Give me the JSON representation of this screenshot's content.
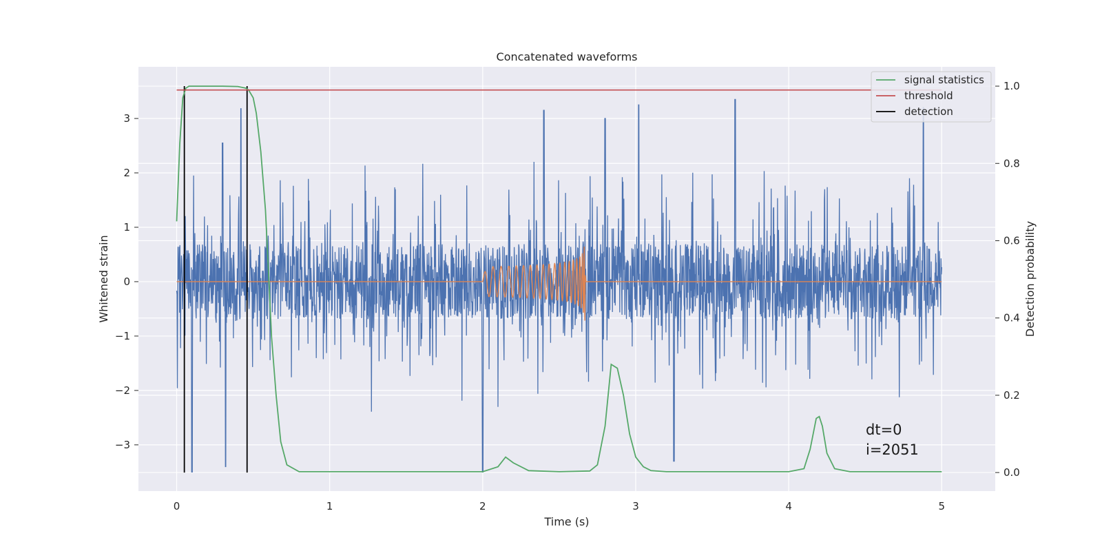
{
  "chart_data": {
    "type": "line",
    "title": "Concatenated waveforms",
    "xlabel": "Time (s)",
    "ylabel": "Whitened strain",
    "ylabel_right": "Detection probability",
    "xlim": [
      -0.25,
      5.35
    ],
    "ylim": [
      -3.85,
      3.95
    ],
    "ylim_right": [
      -0.048,
      1.05
    ],
    "x_ticks": [
      0,
      1,
      2,
      3,
      4,
      5
    ],
    "x_tick_labels": [
      "0",
      "1",
      "2",
      "3",
      "4",
      "5"
    ],
    "y_ticks": [
      -3,
      -2,
      -1,
      0,
      1,
      2,
      3
    ],
    "y_tick_labels": [
      "−3",
      "−2",
      "−1",
      "0",
      "1",
      "2",
      "3"
    ],
    "y2_ticks": [
      0.0,
      0.2,
      0.4,
      0.6,
      0.8,
      1.0
    ],
    "y2_tick_labels": [
      "0.0",
      "0.2",
      "0.4",
      "0.6",
      "0.8",
      "1.0"
    ],
    "grid": true,
    "legend_position": "top-right",
    "colors": {
      "strain": "#4c72b0",
      "injected_signal": "#dd8452",
      "signal_statistics": "#55a868",
      "threshold": "#c44e52",
      "detection": "#000000",
      "plot_background": "#eaeaf2",
      "grid": "#ffffff"
    },
    "strain": {
      "x_range": [
        0,
        5
      ],
      "core_amplitude": 0.6,
      "min": -3.5,
      "max": 3.35,
      "note_peaks": [
        [
          0.3,
          2.55
        ],
        [
          0.42,
          3.18
        ],
        [
          2.4,
          3.15
        ],
        [
          2.8,
          3.0
        ],
        [
          3.02,
          3.25
        ],
        [
          3.65,
          3.35
        ],
        [
          4.88,
          3.2
        ],
        [
          0.1,
          -3.5
        ],
        [
          0.32,
          -3.4
        ],
        [
          2.0,
          -3.5
        ],
        [
          3.25,
          -3.3
        ]
      ]
    },
    "injected_signal": {
      "x_range": [
        2.0,
        2.67
      ],
      "peak_amplitude": 0.72
    },
    "series": [
      {
        "name": "signal statistics",
        "axis": "right",
        "x": [
          0.0,
          0.02,
          0.04,
          0.06,
          0.08,
          0.12,
          0.2,
          0.3,
          0.4,
          0.45,
          0.47,
          0.5,
          0.52,
          0.55,
          0.58,
          0.6,
          0.62,
          0.65,
          0.68,
          0.72,
          0.8,
          1.0,
          1.5,
          2.0,
          2.1,
          2.15,
          2.2,
          2.3,
          2.5,
          2.7,
          2.75,
          2.8,
          2.84,
          2.88,
          2.92,
          2.96,
          3.0,
          3.05,
          3.1,
          3.2,
          3.5,
          4.0,
          4.1,
          4.14,
          4.18,
          4.2,
          4.22,
          4.25,
          4.3,
          4.4,
          5.0
        ],
        "y": [
          0.65,
          0.85,
          0.97,
          0.995,
          1.0,
          1.0,
          1.0,
          1.0,
          0.999,
          0.995,
          0.99,
          0.97,
          0.93,
          0.83,
          0.68,
          0.52,
          0.35,
          0.2,
          0.08,
          0.02,
          0.002,
          0.002,
          0.002,
          0.002,
          0.015,
          0.04,
          0.025,
          0.005,
          0.002,
          0.004,
          0.02,
          0.12,
          0.28,
          0.27,
          0.2,
          0.1,
          0.04,
          0.015,
          0.005,
          0.002,
          0.002,
          0.002,
          0.01,
          0.06,
          0.14,
          0.145,
          0.12,
          0.05,
          0.01,
          0.002,
          0.002
        ]
      },
      {
        "name": "threshold",
        "axis": "right",
        "x": [
          0.0,
          5.0
        ],
        "y": [
          0.99,
          0.99
        ]
      }
    ],
    "detections": {
      "name": "detection",
      "x": [
        0.05,
        0.46
      ],
      "y_range_right": [
        0.0,
        1.0
      ]
    },
    "annotation": {
      "lines": [
        "dt=0",
        "i=2051"
      ],
      "x": 4.5,
      "y": -3.05
    }
  }
}
